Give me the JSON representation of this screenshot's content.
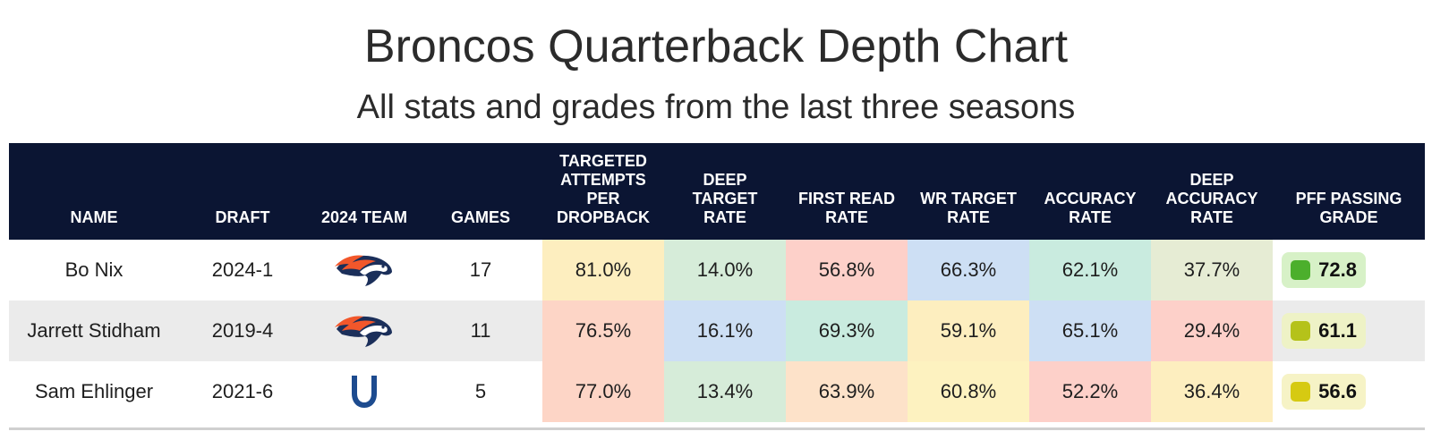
{
  "title": "Broncos Quarterback Depth Chart",
  "subtitle": "All stats and grades from the last three seasons",
  "chart_data": {
    "type": "table",
    "columns": [
      "NAME",
      "DRAFT",
      "2024 TEAM",
      "GAMES",
      "TARGETED\nATTEMPTS\nPER\nDROPBACK",
      "DEEP\nTARGET\nRATE",
      "FIRST READ\nRATE",
      "WR TARGET\nRATE",
      "ACCURACY\nRATE",
      "DEEP\nACCURACY\nRATE",
      "PFF PASSING\nGRADE"
    ],
    "rows": [
      {
        "name": "Bo Nix",
        "draft": "2024-1",
        "team_logo": "broncos-logo-icon",
        "games": "17",
        "stats": [
          "81.0%",
          "14.0%",
          "56.8%",
          "66.3%",
          "62.1%",
          "37.7%"
        ],
        "stat_colors": [
          "#fdeebf",
          "#d6ecd9",
          "#fdd0c9",
          "#cddff4",
          "#c9ebdf",
          "#e6ecd4"
        ],
        "grade": "72.8",
        "grade_bg": "#d7f1c7",
        "grade_dot": "#4caf2c",
        "row_bg": "#ffffff"
      },
      {
        "name": "Jarrett Stidham",
        "draft": "2019-4",
        "team_logo": "broncos-logo-icon",
        "games": "11",
        "stats": [
          "76.5%",
          "16.1%",
          "69.3%",
          "59.1%",
          "65.1%",
          "29.4%"
        ],
        "stat_colors": [
          "#fdd5c6",
          "#cddff4",
          "#c9ebdf",
          "#fdeebf",
          "#cddff4",
          "#fdd0c9"
        ],
        "grade": "61.1",
        "grade_bg": "#eef2c6",
        "grade_dot": "#b5c21a",
        "row_bg": "#ebebeb"
      },
      {
        "name": "Sam Ehlinger",
        "draft": "2021-6",
        "team_logo": "colts-logo-icon",
        "games": "5",
        "stats": [
          "77.0%",
          "13.4%",
          "63.9%",
          "60.8%",
          "52.2%",
          "36.4%"
        ],
        "stat_colors": [
          "#fdd5c6",
          "#d6ecd9",
          "#fde2c9",
          "#fdf2c0",
          "#fdd0c9",
          "#fdeebf"
        ],
        "grade": "56.6",
        "grade_bg": "#f6f3c6",
        "grade_dot": "#d6ca12",
        "row_bg": "#ffffff"
      }
    ]
  }
}
